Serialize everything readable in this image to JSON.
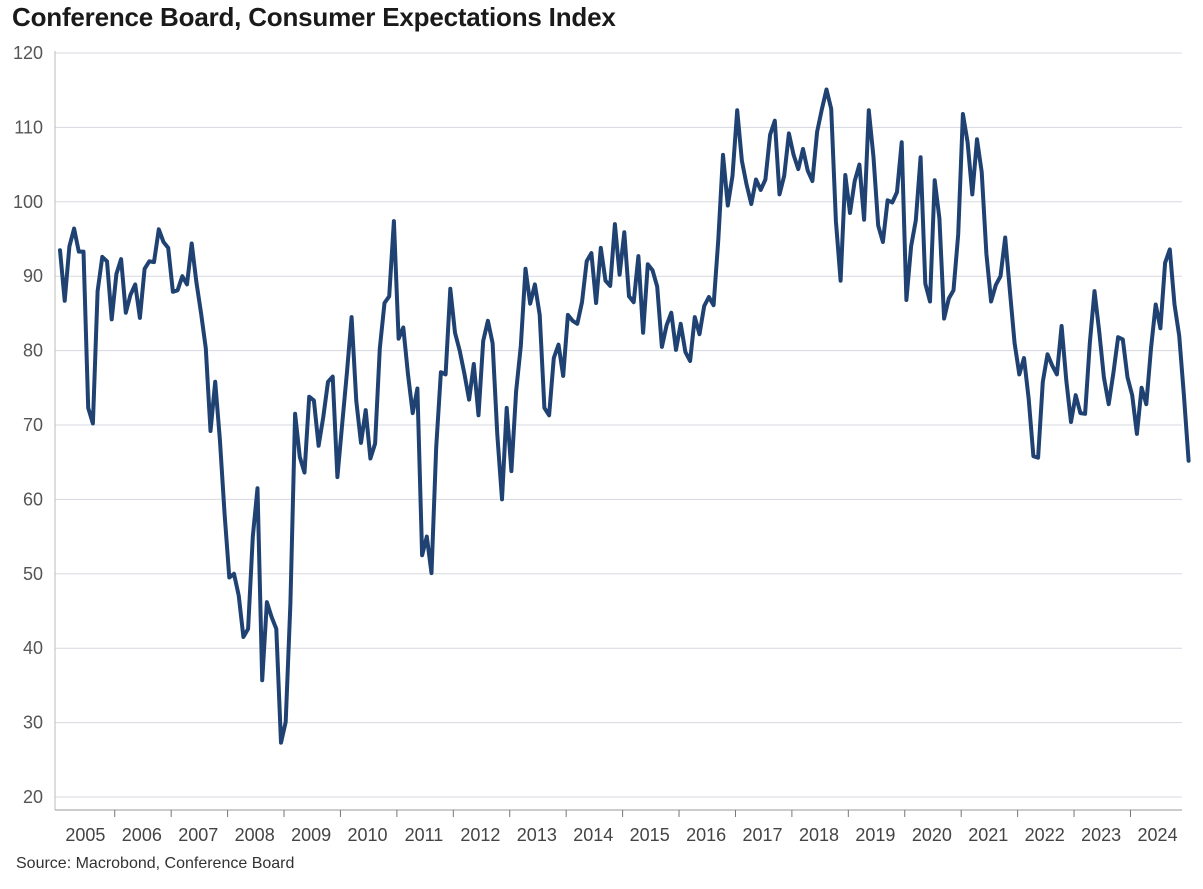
{
  "chart_data": {
    "type": "line",
    "title": "Conference Board, Consumer Expectations Index",
    "source": "Source: Macrobond, Conference Board",
    "xlabel": "",
    "ylabel": "",
    "ylim": [
      20,
      120
    ],
    "yticks": [
      20,
      30,
      40,
      50,
      60,
      70,
      80,
      90,
      100,
      110,
      120
    ],
    "xlim": [
      2005.0,
      2024.83
    ],
    "xticks": [
      "2005",
      "2006",
      "2007",
      "2008",
      "2009",
      "2010",
      "2011",
      "2012",
      "2013",
      "2014",
      "2015",
      "2016",
      "2017",
      "2018",
      "2019",
      "2020",
      "2021",
      "2022",
      "2023",
      "2024"
    ],
    "grid": "horizontal",
    "color": "#1f4272",
    "series": [
      {
        "name": "Consumer Expectations Index",
        "start": "2005-01",
        "frequency": "monthly",
        "values": [
          93.5,
          86.7,
          94.0,
          96.4,
          93.3,
          93.3,
          72.3,
          70.2,
          88.0,
          92.6,
          92.0,
          84.2,
          90.3,
          92.3,
          85.1,
          87.5,
          88.9,
          84.4,
          91.0,
          92.0,
          91.9,
          96.3,
          94.6,
          93.8,
          87.9,
          88.1,
          90.0,
          88.9,
          94.4,
          89.2,
          85.0,
          80.3,
          69.2,
          75.8,
          68.0,
          58.0,
          49.5,
          50.0,
          47.1,
          41.5,
          42.6,
          55.0,
          61.5,
          35.7,
          46.2,
          44.2,
          42.6,
          27.3,
          30.1,
          46.0,
          71.5,
          65.7,
          63.6,
          73.8,
          73.3,
          67.2,
          71.1,
          75.8,
          76.5,
          63.0,
          70.0,
          77.0,
          84.5,
          73.2,
          67.6,
          72.0,
          65.5,
          67.5,
          80.3,
          86.4,
          87.3,
          97.4,
          81.6,
          83.1,
          76.8,
          71.6,
          74.9,
          52.5,
          55.0,
          50.1,
          67.0,
          77.1,
          76.8,
          88.3,
          82.4,
          80.0,
          76.9,
          73.4,
          78.2,
          71.3,
          81.3,
          84.0,
          81.0,
          68.7,
          60.0,
          72.3,
          63.8,
          74.5,
          80.6,
          91.0,
          86.3,
          88.9,
          84.8,
          72.3,
          71.3,
          79.0,
          80.8,
          76.6,
          84.8,
          84.0,
          83.6,
          86.5,
          92.0,
          93.1,
          86.4,
          93.8,
          89.4,
          88.7,
          97.0,
          90.2,
          95.9,
          87.3,
          86.5,
          92.7,
          82.4,
          91.6,
          90.8,
          88.6,
          80.5,
          83.4,
          85.1,
          80.1,
          83.6,
          79.8,
          78.6,
          84.5,
          82.2,
          86.0,
          87.2,
          86.1,
          94.9,
          106.3,
          99.5,
          103.5,
          112.3,
          105.5,
          102.3,
          99.7,
          103.0,
          101.6,
          103.0,
          109.0,
          110.9,
          101.0,
          103.5,
          109.2,
          106.3,
          104.4,
          107.1,
          104.2,
          102.8,
          109.4,
          112.4,
          115.1,
          112.5,
          97.4,
          89.4,
          103.6,
          98.5,
          102.8,
          105.0,
          97.6,
          112.3,
          106.0,
          96.8,
          94.6,
          100.2,
          99.9,
          101.3,
          108.0,
          86.8,
          94.0,
          97.5,
          106.0,
          89.0,
          86.6,
          102.9,
          97.8,
          84.3,
          87.0,
          88.1,
          95.6,
          111.8,
          108.0,
          101.0,
          108.4,
          104.0,
          93.0,
          86.6,
          88.8,
          90.0,
          95.2,
          88.0,
          81.0,
          76.8,
          79.0,
          73.5,
          65.8,
          65.6,
          75.8,
          79.5,
          78.0,
          76.8,
          83.3,
          76.0,
          70.4,
          74.0,
          71.6,
          71.5,
          81.0,
          88.0,
          82.6,
          76.4,
          72.8,
          77.0,
          81.8,
          81.5,
          76.4,
          74.0,
          68.8,
          75.0,
          72.8,
          80.3,
          86.2,
          83.0,
          91.8,
          93.6,
          86.2,
          82.0,
          74.0,
          65.2
        ]
      }
    ]
  }
}
